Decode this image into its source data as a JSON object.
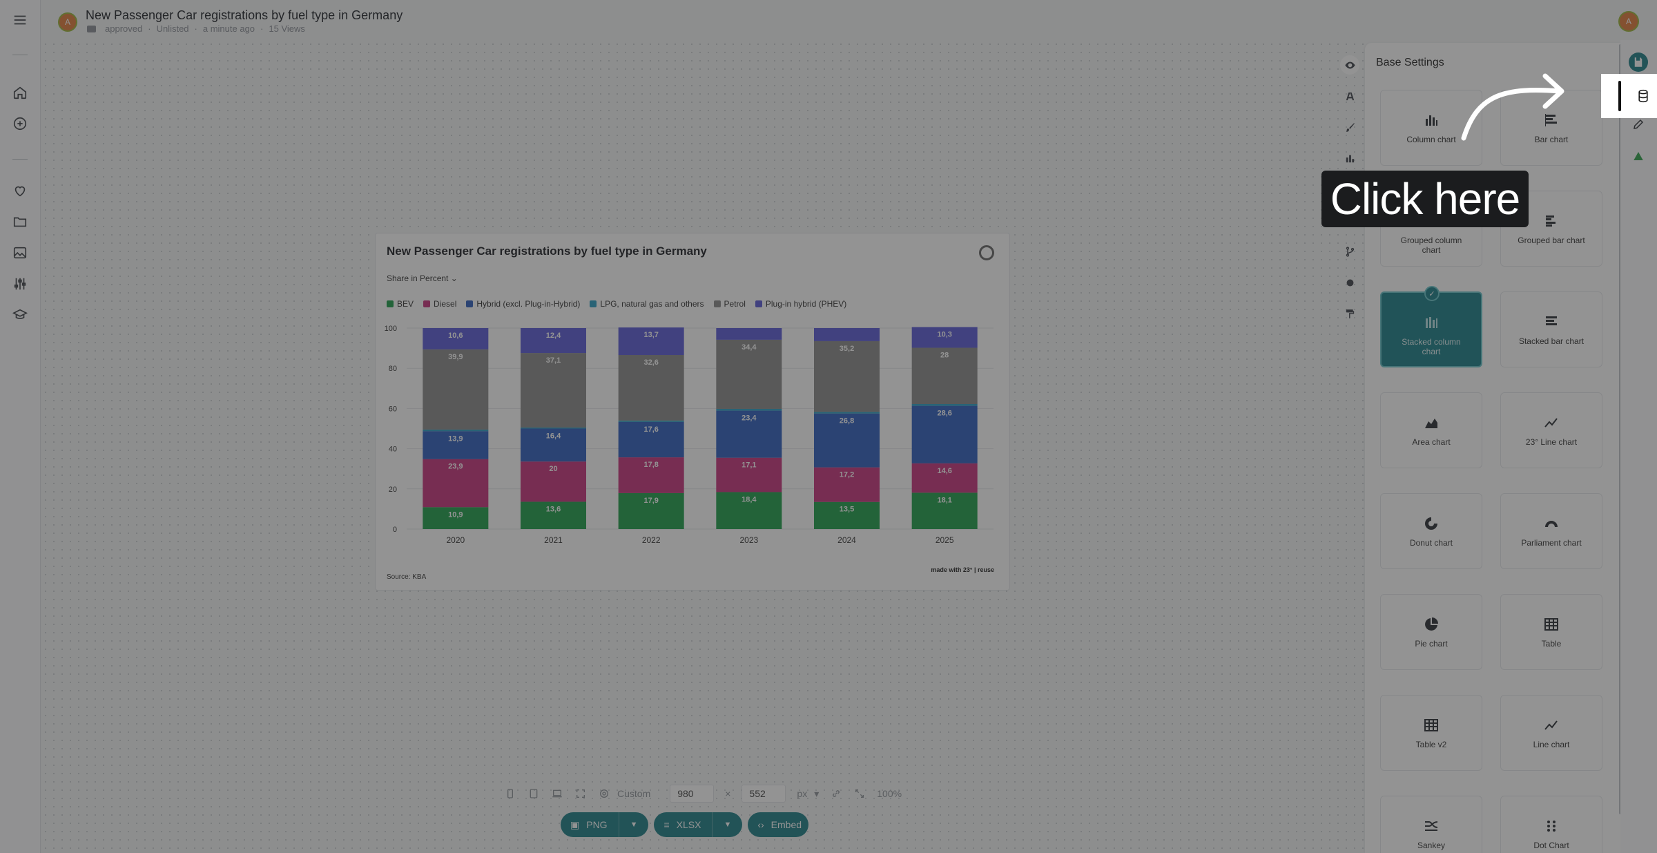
{
  "header": {
    "title": "New Passenger Car registrations by fuel type in Germany",
    "meta": [
      "approved",
      "Unlisted",
      "a minute ago",
      "15 Views"
    ],
    "avatar_letter": "A"
  },
  "nav": {
    "icons": [
      "menu-icon",
      "home-icon",
      "add-icon",
      "heart-icon",
      "folder-icon",
      "image-icon",
      "settings-sliders-icon",
      "graduation-cap-icon"
    ]
  },
  "card": {
    "title": "New Passenger Car registrations by fuel type in Germany",
    "dropdown_label": "Share in Percent",
    "source": "Source: KBA",
    "credit": "made with 23° | reuse"
  },
  "chart_data": {
    "type": "bar",
    "stacked": true,
    "categories": [
      "2020",
      "2021",
      "2022",
      "2023",
      "2024",
      "2025"
    ],
    "ylim": [
      0,
      100
    ],
    "yticks": [
      0,
      20,
      40,
      60,
      80,
      100
    ],
    "legend_position": "top-left",
    "grid": true,
    "series": [
      {
        "name": "BEV",
        "color": "#1f9e4a",
        "values": [
          10.9,
          13.6,
          17.9,
          18.4,
          13.5,
          18.1
        ],
        "labels": [
          "10,9",
          "13,6",
          "17,9",
          "18,4",
          "13,5",
          "18,1"
        ]
      },
      {
        "name": "Diesel",
        "color": "#c7337c",
        "values": [
          23.9,
          20,
          17.8,
          17.1,
          17.2,
          14.6
        ],
        "labels": [
          "23,9",
          "20",
          "17,8",
          "17,1",
          "17,2",
          "14,6"
        ]
      },
      {
        "name": "Hybrid (excl. Plug-in-Hybrid)",
        "color": "#2f5fbf",
        "values": [
          13.9,
          16.4,
          17.6,
          23.4,
          26.8,
          28.6
        ],
        "labels": [
          "13,9",
          "16,4",
          "17,6",
          "23,4",
          "26,8",
          "28,6"
        ]
      },
      {
        "name": "LPG, natural gas and others",
        "color": "#2b9fc4",
        "values": [
          0.8,
          0.5,
          0.7,
          0.9,
          0.8,
          0.9
        ],
        "labels": [
          "",
          "",
          "",
          "",
          "",
          ""
        ]
      },
      {
        "name": "Petrol",
        "color": "#8b8b8b",
        "values": [
          39.9,
          37.1,
          32.6,
          34.4,
          35.2,
          28
        ],
        "labels": [
          "39,9",
          "37,1",
          "32,6",
          "34,4",
          "35,2",
          "28"
        ]
      },
      {
        "name": "Plug-in hybrid (PHEV)",
        "color": "#5b5bd6",
        "values": [
          10.6,
          12.4,
          13.7,
          5.8,
          6.5,
          10.3
        ],
        "labels": [
          "10,6",
          "12,4",
          "13,7",
          "",
          "",
          "10,3"
        ]
      }
    ]
  },
  "toolbar": {
    "preset": "Custom",
    "width": "980",
    "height": "552",
    "times": "×",
    "unit": "px",
    "zoom": "100%",
    "png_label": "PNG",
    "xlsx_label": "XLSX",
    "embed_label": "Embed"
  },
  "panel": {
    "title": "Base Settings",
    "tiles": [
      {
        "label": "Column chart",
        "icon": "column-chart-icon"
      },
      {
        "label": "Bar chart",
        "icon": "bar-chart-icon"
      },
      {
        "label": "Grouped column chart",
        "icon": "grouped-column-chart-icon"
      },
      {
        "label": "Grouped bar chart",
        "icon": "grouped-bar-chart-icon"
      },
      {
        "label": "Stacked column chart",
        "icon": "stacked-column-chart-icon",
        "selected": true
      },
      {
        "label": "Stacked bar chart",
        "icon": "stacked-bar-chart-icon"
      },
      {
        "label": "Area chart",
        "icon": "area-chart-icon"
      },
      {
        "label": "23° Line chart",
        "icon": "line-chart-icon"
      },
      {
        "label": "Donut chart",
        "icon": "donut-chart-icon"
      },
      {
        "label": "Parliament chart",
        "icon": "parliament-chart-icon"
      },
      {
        "label": "Pie chart",
        "icon": "pie-chart-icon"
      },
      {
        "label": "Table",
        "icon": "table-icon"
      },
      {
        "label": "Table v2",
        "icon": "table-icon"
      },
      {
        "label": "Line chart",
        "icon": "line-chart-icon"
      },
      {
        "label": "Sankey",
        "icon": "sankey-icon"
      },
      {
        "label": "Dot Chart",
        "icon": "dot-chart-icon"
      }
    ]
  },
  "overlay": {
    "callout_text": "Click here",
    "accent": "#1d7e87"
  }
}
